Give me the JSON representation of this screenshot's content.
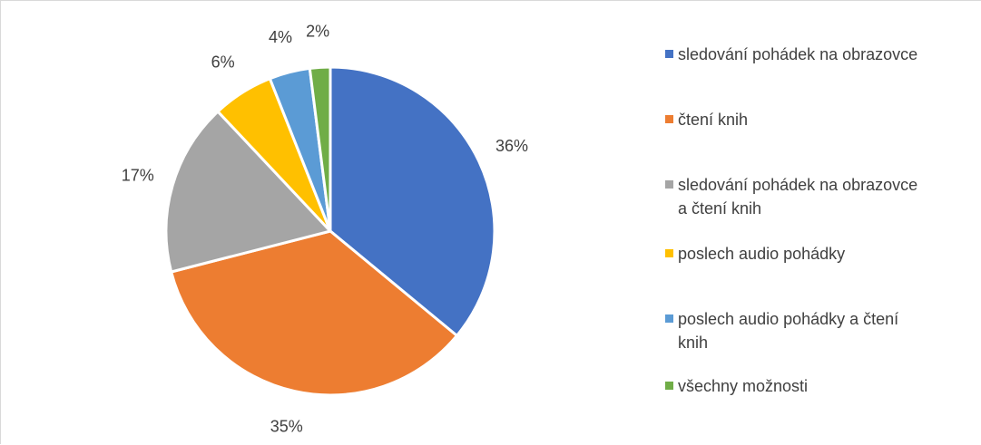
{
  "chart_data": {
    "type": "pie",
    "title": "",
    "categories": [
      "sledování pohádek na obrazovce",
      "čtení knih",
      "sledování pohádek na obrazovce a čtení knih",
      "poslech audio pohádky",
      "poslech audio pohádky a čtení knih",
      "všechny možnosti"
    ],
    "values": [
      36,
      35,
      17,
      6,
      4,
      2
    ],
    "data_labels": [
      "36%",
      "35%",
      "17%",
      "6%",
      "4%",
      "2%"
    ],
    "colors": [
      "#4472C4",
      "#ED7D31",
      "#A5A5A5",
      "#FFC000",
      "#5B9BD5",
      "#70AD47"
    ],
    "legend_position": "right"
  },
  "legend": {
    "items": [
      {
        "lines": [
          "sledování pohádek na obrazovce"
        ]
      },
      {
        "lines": [
          "čtení knih"
        ]
      },
      {
        "lines": [
          "sledování pohádek na obrazovce",
          "a čtení knih"
        ]
      },
      {
        "lines": [
          "poslech audio pohádky"
        ]
      },
      {
        "lines": [
          "poslech audio pohádky a čtení",
          "knih"
        ]
      },
      {
        "lines": [
          "všechny možnosti"
        ]
      }
    ]
  }
}
